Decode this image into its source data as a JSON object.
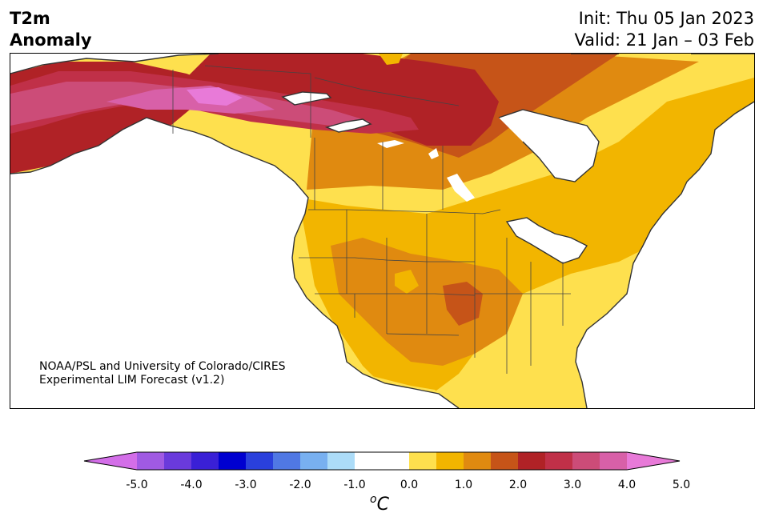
{
  "title": {
    "left_line1": "T2m",
    "left_line2": "Anomaly",
    "init": "Init: Thu 05 Jan 2023",
    "valid": "Valid: 21 Jan – 03 Feb"
  },
  "credit": {
    "line1": "NOAA/PSL and University of Colorado/CIRES",
    "line2": "Experimental LIM Forecast (v1.2)"
  },
  "colorbar": {
    "unit_base": "C",
    "unit_sup": "o",
    "ticks": [
      "-5.0",
      "-4.0",
      "-3.0",
      "-2.0",
      "-1.0",
      "0.0",
      "1.0",
      "2.0",
      "3.0",
      "4.0",
      "5.0"
    ],
    "under_color": "#d36ee8",
    "over_color": "#e87ad8",
    "colors": [
      "#a05ae3",
      "#6a3adc",
      "#3a20d6",
      "#0000d0",
      "#2a40dc",
      "#5078e4",
      "#78b0f0",
      "#acdcf8",
      "#ffffff",
      "#ffffff",
      "#fee04e",
      "#f2b500",
      "#e08a10",
      "#c65418",
      "#b02226",
      "#c03048",
      "#cc4c78",
      "#d860a8"
    ]
  },
  "map": {
    "anomaly_colors": {
      "light_yellow": "#fee04e",
      "yellow": "#f2b500",
      "orange": "#e08a10",
      "dark_orange": "#c65418",
      "red": "#b02226",
      "crimson": "#c03048",
      "rose": "#cc4c78",
      "pink": "#d860a8",
      "magenta": "#e87ad8"
    },
    "coastline_color": "#333333"
  }
}
